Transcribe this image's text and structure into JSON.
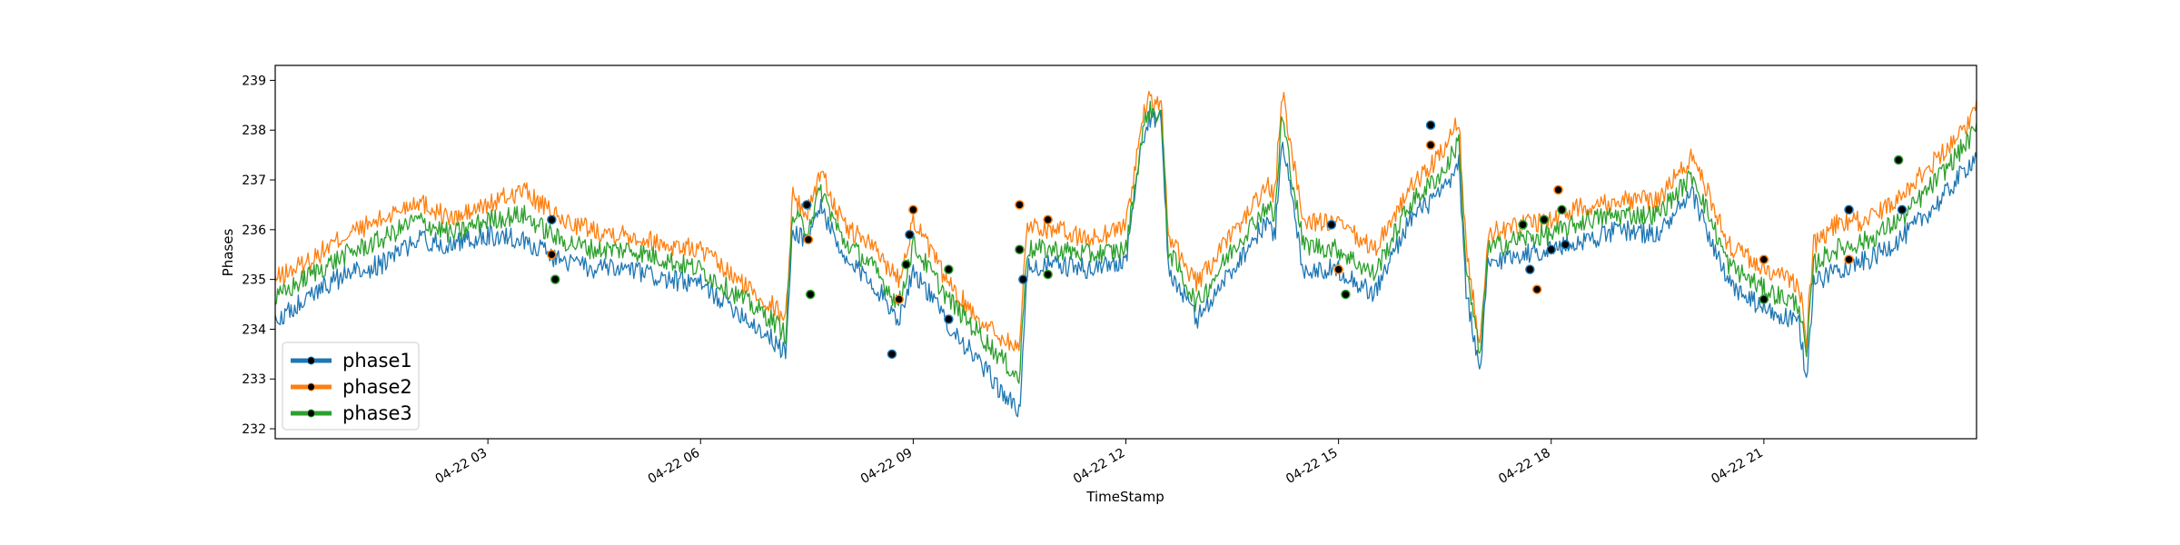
{
  "chart_data": {
    "type": "line",
    "title": "",
    "xlabel": "TimeStamp",
    "ylabel": "Phases",
    "x_tick_labels": [
      "04-22 03",
      "04-22 06",
      "04-22 09",
      "04-22 12",
      "04-22 15",
      "04-22 18",
      "04-22 21"
    ],
    "x_tick_hours": [
      3,
      6,
      9,
      12,
      15,
      18,
      21
    ],
    "xlim_hours": [
      0,
      24
    ],
    "y_ticks": [
      232,
      233,
      234,
      235,
      236,
      237,
      238,
      239
    ],
    "ylim": [
      231.8,
      239.3
    ],
    "grid": false,
    "legend_position": "lower-left",
    "colors": {
      "phase1": "#1f77b4",
      "phase2": "#ff7f0e",
      "phase3": "#2ca02c",
      "marker": "#000000"
    },
    "series": [
      {
        "name": "phase1",
        "key": "phase1",
        "x_hours": [
          0.0,
          0.5,
          1.0,
          1.5,
          2.0,
          2.5,
          3.0,
          3.5,
          4.0,
          4.5,
          5.0,
          5.5,
          6.0,
          6.5,
          7.0,
          7.2,
          7.3,
          7.5,
          7.7,
          8.0,
          8.4,
          8.8,
          9.0,
          9.5,
          10.0,
          10.5,
          10.6,
          11.0,
          11.5,
          12.0,
          12.2,
          12.3,
          12.5,
          12.6,
          13.0,
          13.5,
          14.0,
          14.1,
          14.2,
          14.5,
          15.0,
          15.5,
          16.0,
          16.5,
          16.7,
          16.8,
          17.0,
          17.1,
          17.5,
          18.0,
          18.5,
          19.0,
          19.5,
          20.0,
          20.5,
          21.0,
          21.5,
          21.6,
          21.7,
          22.0,
          22.5,
          23.0,
          23.5,
          24.0
        ],
        "values": [
          234.2,
          234.7,
          235.1,
          235.3,
          235.8,
          235.7,
          235.9,
          235.8,
          235.4,
          235.2,
          235.2,
          235.0,
          234.9,
          234.4,
          233.8,
          233.5,
          236.0,
          235.8,
          236.5,
          235.4,
          235.0,
          234.2,
          235.2,
          234.1,
          233.2,
          232.3,
          235.2,
          235.3,
          235.2,
          235.4,
          237.5,
          238.2,
          238.2,
          235.2,
          234.2,
          235.2,
          236.2,
          235.8,
          237.9,
          235.2,
          235.2,
          234.7,
          236.2,
          236.8,
          237.3,
          234.8,
          233.0,
          235.3,
          235.5,
          235.6,
          235.8,
          236.0,
          235.9,
          236.7,
          234.9,
          234.4,
          234.1,
          233.0,
          234.9,
          235.2,
          235.4,
          235.9,
          236.6,
          237.5
        ]
      },
      {
        "name": "phase2",
        "key": "phase2",
        "x_hours": [
          0.0,
          0.5,
          1.0,
          1.5,
          2.0,
          2.5,
          3.0,
          3.5,
          4.0,
          4.5,
          5.0,
          5.5,
          6.0,
          6.5,
          7.0,
          7.2,
          7.3,
          7.5,
          7.7,
          8.0,
          8.4,
          8.8,
          9.0,
          9.5,
          10.0,
          10.5,
          10.6,
          11.0,
          11.5,
          12.0,
          12.2,
          12.3,
          12.5,
          12.6,
          13.0,
          13.5,
          14.0,
          14.1,
          14.2,
          14.5,
          15.0,
          15.5,
          16.0,
          16.5,
          16.7,
          16.8,
          17.0,
          17.1,
          17.5,
          18.0,
          18.5,
          19.0,
          19.5,
          20.0,
          20.5,
          21.0,
          21.5,
          21.6,
          21.7,
          22.0,
          22.5,
          23.0,
          23.5,
          24.0
        ],
        "values": [
          235.0,
          235.4,
          235.9,
          236.2,
          236.6,
          236.2,
          236.5,
          236.8,
          236.2,
          236.0,
          235.9,
          235.7,
          235.6,
          235.0,
          234.5,
          234.2,
          236.7,
          236.3,
          237.2,
          236.1,
          235.7,
          235.0,
          236.2,
          234.9,
          234.1,
          233.6,
          236.1,
          236.0,
          235.8,
          236.1,
          237.9,
          238.6,
          238.5,
          235.9,
          234.9,
          235.9,
          236.9,
          236.6,
          238.8,
          236.2,
          236.1,
          235.6,
          236.8,
          237.6,
          238.2,
          235.6,
          233.7,
          235.9,
          236.1,
          236.2,
          236.5,
          236.6,
          236.6,
          237.5,
          235.7,
          235.2,
          234.9,
          233.8,
          235.7,
          236.1,
          236.2,
          236.8,
          237.5,
          238.4
        ]
      },
      {
        "name": "phase3",
        "key": "phase3",
        "x_hours": [
          0.0,
          0.5,
          1.0,
          1.5,
          2.0,
          2.5,
          3.0,
          3.5,
          4.0,
          4.5,
          5.0,
          5.5,
          6.0,
          6.5,
          7.0,
          7.2,
          7.3,
          7.5,
          7.7,
          8.0,
          8.4,
          8.8,
          9.0,
          9.5,
          10.0,
          10.5,
          10.6,
          11.0,
          11.5,
          12.0,
          12.2,
          12.3,
          12.5,
          12.6,
          13.0,
          13.5,
          14.0,
          14.1,
          14.2,
          14.5,
          15.0,
          15.5,
          16.0,
          16.5,
          16.7,
          16.8,
          17.0,
          17.1,
          17.5,
          18.0,
          18.5,
          19.0,
          19.5,
          20.0,
          20.5,
          21.0,
          21.5,
          21.6,
          21.7,
          22.0,
          22.5,
          23.0,
          23.5,
          24.0
        ],
        "values": [
          234.6,
          235.1,
          235.5,
          235.8,
          236.2,
          235.9,
          236.2,
          236.3,
          235.8,
          235.6,
          235.6,
          235.4,
          235.2,
          234.7,
          234.2,
          233.9,
          236.3,
          236.0,
          236.8,
          235.8,
          235.3,
          234.5,
          235.7,
          234.6,
          233.8,
          233.0,
          235.6,
          235.6,
          235.5,
          235.6,
          237.6,
          238.4,
          238.3,
          235.6,
          234.5,
          235.6,
          236.5,
          236.2,
          238.3,
          235.7,
          235.6,
          235.1,
          236.5,
          237.2,
          237.8,
          235.2,
          233.4,
          235.6,
          235.8,
          235.9,
          236.2,
          236.3,
          236.3,
          237.1,
          235.3,
          234.8,
          234.5,
          233.4,
          235.3,
          235.6,
          235.8,
          236.3,
          237.1,
          238.0
        ]
      }
    ],
    "anomaly_markers": [
      {
        "x_hour": 3.9,
        "value": 236.2
      },
      {
        "x_hour": 3.9,
        "value": 235.5
      },
      {
        "x_hour": 3.95,
        "value": 235.0
      },
      {
        "x_hour": 7.5,
        "value": 236.5
      },
      {
        "x_hour": 7.52,
        "value": 235.8
      },
      {
        "x_hour": 7.55,
        "value": 234.7
      },
      {
        "x_hour": 8.7,
        "value": 233.5
      },
      {
        "x_hour": 8.8,
        "value": 234.6
      },
      {
        "x_hour": 8.9,
        "value": 235.3
      },
      {
        "x_hour": 8.95,
        "value": 235.9
      },
      {
        "x_hour": 9.0,
        "value": 236.4
      },
      {
        "x_hour": 9.5,
        "value": 235.2
      },
      {
        "x_hour": 9.5,
        "value": 234.2
      },
      {
        "x_hour": 10.5,
        "value": 236.5
      },
      {
        "x_hour": 10.5,
        "value": 235.6
      },
      {
        "x_hour": 10.55,
        "value": 235.0
      },
      {
        "x_hour": 10.9,
        "value": 236.2
      },
      {
        "x_hour": 10.9,
        "value": 235.1
      },
      {
        "x_hour": 14.9,
        "value": 236.1
      },
      {
        "x_hour": 15.0,
        "value": 235.2
      },
      {
        "x_hour": 15.1,
        "value": 234.7
      },
      {
        "x_hour": 16.3,
        "value": 238.1
      },
      {
        "x_hour": 16.3,
        "value": 237.7
      },
      {
        "x_hour": 17.6,
        "value": 236.1
      },
      {
        "x_hour": 17.7,
        "value": 235.2
      },
      {
        "x_hour": 17.8,
        "value": 234.8
      },
      {
        "x_hour": 17.9,
        "value": 236.2
      },
      {
        "x_hour": 18.0,
        "value": 235.6
      },
      {
        "x_hour": 18.1,
        "value": 236.8
      },
      {
        "x_hour": 18.15,
        "value": 236.4
      },
      {
        "x_hour": 18.2,
        "value": 235.7
      },
      {
        "x_hour": 21.0,
        "value": 235.4
      },
      {
        "x_hour": 21.0,
        "value": 234.6
      },
      {
        "x_hour": 22.2,
        "value": 236.4
      },
      {
        "x_hour": 22.2,
        "value": 235.4
      },
      {
        "x_hour": 22.9,
        "value": 237.4
      },
      {
        "x_hour": 22.95,
        "value": 236.4
      }
    ]
  }
}
